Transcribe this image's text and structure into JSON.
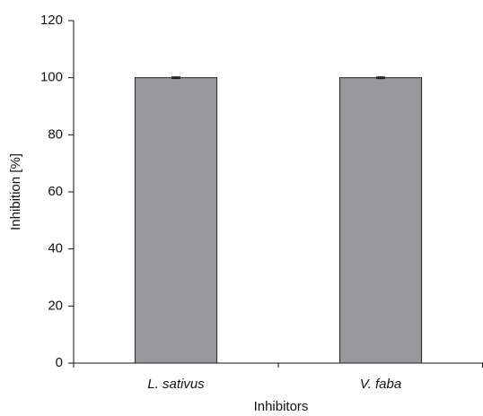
{
  "chart_data": {
    "type": "bar",
    "categories": [
      "L. sativus",
      "V. faba"
    ],
    "values": [
      100,
      100
    ],
    "errors": [
      0.3,
      0.3
    ],
    "color": "#98989c",
    "ylim": [
      0,
      120
    ],
    "yticks": [
      0,
      20,
      40,
      60,
      80,
      100,
      120
    ],
    "x_label": "Inhibitors",
    "y_label": "Inhibition [%]",
    "grid": false
  }
}
